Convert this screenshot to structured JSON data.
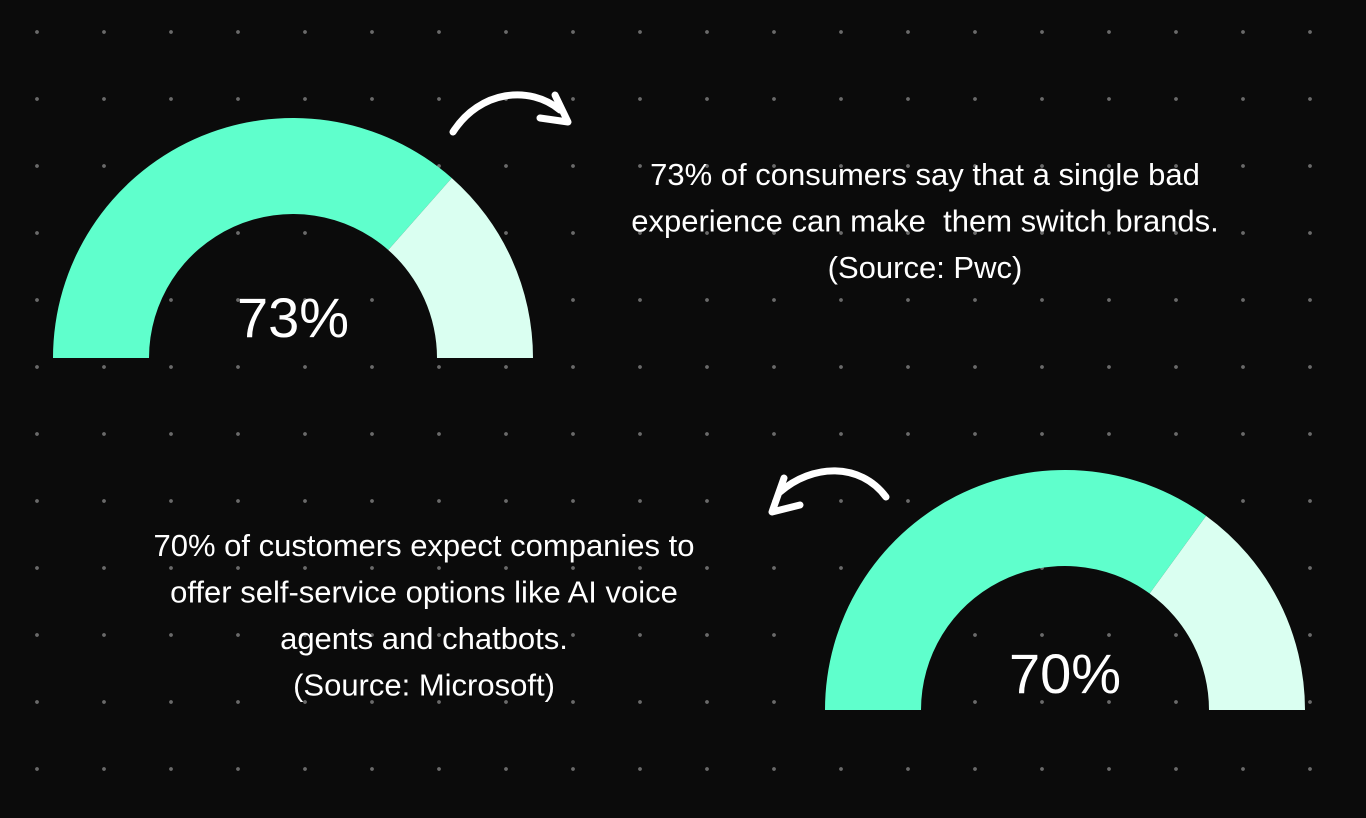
{
  "chart_data": [
    {
      "type": "gauge",
      "value": 73,
      "value_label": "73%",
      "ylim": [
        0,
        100
      ],
      "color": "#5fffcc",
      "rest_color": "#dafff1",
      "caption": [
        "73% of consumers say that a single bad",
        "experience can make  them switch brands.",
        "(Source: Pwc)"
      ]
    },
    {
      "type": "gauge",
      "value": 70,
      "value_label": "70%",
      "ylim": [
        0,
        100
      ],
      "color": "#5fffcc",
      "rest_color": "#dafff1",
      "caption": [
        "70% of customers expect companies to",
        "offer self-service options like AI voice",
        "agents and chatbots.",
        "(Source: Microsoft)"
      ]
    }
  ]
}
